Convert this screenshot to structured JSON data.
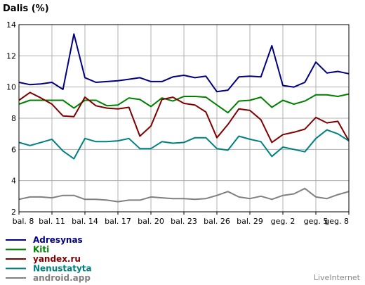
{
  "chart_data": {
    "type": "line",
    "title": "Dalis (%)",
    "ylim": [
      2,
      14
    ],
    "yticks": [
      2,
      4,
      6,
      8,
      10,
      12,
      14
    ],
    "x_labels": [
      "bal. 8",
      "bal. 11",
      "bal. 14",
      "bal. 17",
      "bal. 20",
      "bal. 23",
      "bal. 26",
      "bal. 29",
      "geg. 2",
      "geg. 5",
      "geg. 8"
    ],
    "grid": true,
    "legend_position": "bottom-left",
    "series": [
      {
        "name": "Adresynas",
        "color": "#000080",
        "values": [
          10.3,
          10.15,
          10.2,
          10.3,
          9.85,
          13.4,
          10.6,
          10.3,
          10.35,
          10.4,
          10.5,
          10.6,
          10.35,
          10.35,
          10.65,
          10.75,
          10.6,
          10.7,
          9.7,
          9.8,
          10.65,
          10.7,
          10.65,
          12.65,
          10.1,
          10.0,
          10.3,
          11.6,
          10.9,
          11.0,
          10.85
        ]
      },
      {
        "name": "Kiti",
        "color": "#008000",
        "values": [
          8.9,
          9.15,
          9.15,
          9.15,
          9.15,
          8.65,
          9.15,
          9.15,
          8.8,
          8.85,
          9.3,
          9.2,
          8.75,
          9.3,
          9.1,
          9.4,
          9.4,
          9.35,
          8.85,
          8.35,
          9.1,
          9.15,
          9.35,
          8.7,
          9.15,
          8.9,
          9.1,
          9.5,
          9.5,
          9.4,
          9.55
        ]
      },
      {
        "name": "yandex.ru",
        "color": "#800000",
        "values": [
          9.15,
          9.65,
          9.3,
          8.9,
          8.15,
          8.1,
          9.35,
          8.8,
          8.65,
          8.6,
          8.7,
          6.85,
          7.5,
          9.2,
          9.35,
          8.95,
          8.85,
          8.4,
          6.75,
          7.6,
          8.6,
          8.5,
          7.9,
          6.45,
          6.95,
          7.1,
          7.3,
          8.05,
          7.7,
          7.8,
          6.55
        ]
      },
      {
        "name": "Nenustatyta",
        "color": "#008080",
        "values": [
          6.45,
          6.25,
          6.45,
          6.65,
          5.9,
          5.4,
          6.7,
          6.5,
          6.5,
          6.55,
          6.7,
          6.05,
          6.05,
          6.5,
          6.4,
          6.45,
          6.75,
          6.75,
          6.05,
          5.95,
          6.85,
          6.65,
          6.5,
          5.55,
          6.15,
          6.0,
          5.85,
          6.7,
          7.25,
          7.0,
          6.55
        ]
      },
      {
        "name": "android.app",
        "color": "#808080",
        "values": [
          2.8,
          2.95,
          2.95,
          2.9,
          3.05,
          3.05,
          2.8,
          2.8,
          2.75,
          2.65,
          2.75,
          2.75,
          2.95,
          2.9,
          2.85,
          2.85,
          2.8,
          2.85,
          3.05,
          3.3,
          2.95,
          2.85,
          3.0,
          2.8,
          3.05,
          3.15,
          3.5,
          2.95,
          2.85,
          3.1,
          3.3
        ]
      }
    ]
  },
  "brand": "LiveInternet"
}
